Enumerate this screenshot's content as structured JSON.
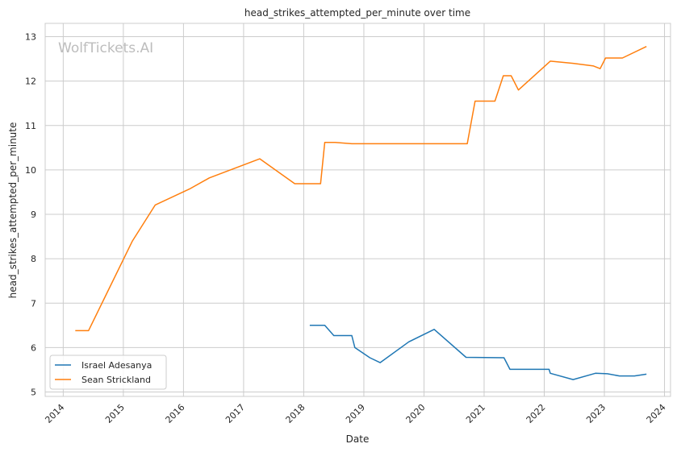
{
  "chart_data": {
    "type": "line",
    "title": "head_strikes_attempted_per_minute over time",
    "xlabel": "Date",
    "ylabel": "head_strikes_attempted_per_minute",
    "watermark": "WolfTickets.AI",
    "xlim": [
      2013.7,
      2024.1
    ],
    "ylim": [
      4.9,
      13.3
    ],
    "x_ticks": [
      2014,
      2015,
      2016,
      2017,
      2018,
      2019,
      2020,
      2021,
      2022,
      2023,
      2024
    ],
    "y_ticks": [
      5,
      6,
      7,
      8,
      9,
      10,
      11,
      12,
      13
    ],
    "grid": true,
    "legend_position": "lower-left",
    "series": [
      {
        "name": "Israel Adesanya",
        "color": "#1f77b4",
        "points": [
          [
            2018.1,
            6.5
          ],
          [
            2018.35,
            6.5
          ],
          [
            2018.5,
            6.27
          ],
          [
            2018.8,
            6.27
          ],
          [
            2018.85,
            6.0
          ],
          [
            2019.1,
            5.77
          ],
          [
            2019.27,
            5.66
          ],
          [
            2019.75,
            6.13
          ],
          [
            2020.17,
            6.41
          ],
          [
            2020.7,
            5.78
          ],
          [
            2021.33,
            5.77
          ],
          [
            2021.43,
            5.51
          ],
          [
            2022.08,
            5.51
          ],
          [
            2022.1,
            5.42
          ],
          [
            2022.48,
            5.28
          ],
          [
            2022.85,
            5.42
          ],
          [
            2023.05,
            5.41
          ],
          [
            2023.25,
            5.36
          ],
          [
            2023.5,
            5.36
          ],
          [
            2023.7,
            5.4
          ]
        ]
      },
      {
        "name": "Sean Strickland",
        "color": "#ff7f0e",
        "points": [
          [
            2014.2,
            6.38
          ],
          [
            2014.42,
            6.38
          ],
          [
            2015.15,
            8.4
          ],
          [
            2015.53,
            9.21
          ],
          [
            2016.1,
            9.57
          ],
          [
            2016.43,
            9.82
          ],
          [
            2017.27,
            10.25
          ],
          [
            2017.85,
            9.69
          ],
          [
            2018.28,
            9.69
          ],
          [
            2018.35,
            10.62
          ],
          [
            2018.52,
            10.62
          ],
          [
            2018.8,
            10.59
          ],
          [
            2020.72,
            10.59
          ],
          [
            2020.85,
            11.55
          ],
          [
            2021.18,
            11.55
          ],
          [
            2021.32,
            12.12
          ],
          [
            2021.45,
            12.12
          ],
          [
            2021.57,
            11.8
          ],
          [
            2022.1,
            12.45
          ],
          [
            2022.48,
            12.4
          ],
          [
            2022.82,
            12.34
          ],
          [
            2022.93,
            12.28
          ],
          [
            2023.02,
            12.52
          ],
          [
            2023.3,
            12.52
          ],
          [
            2023.7,
            12.78
          ]
        ]
      }
    ]
  }
}
